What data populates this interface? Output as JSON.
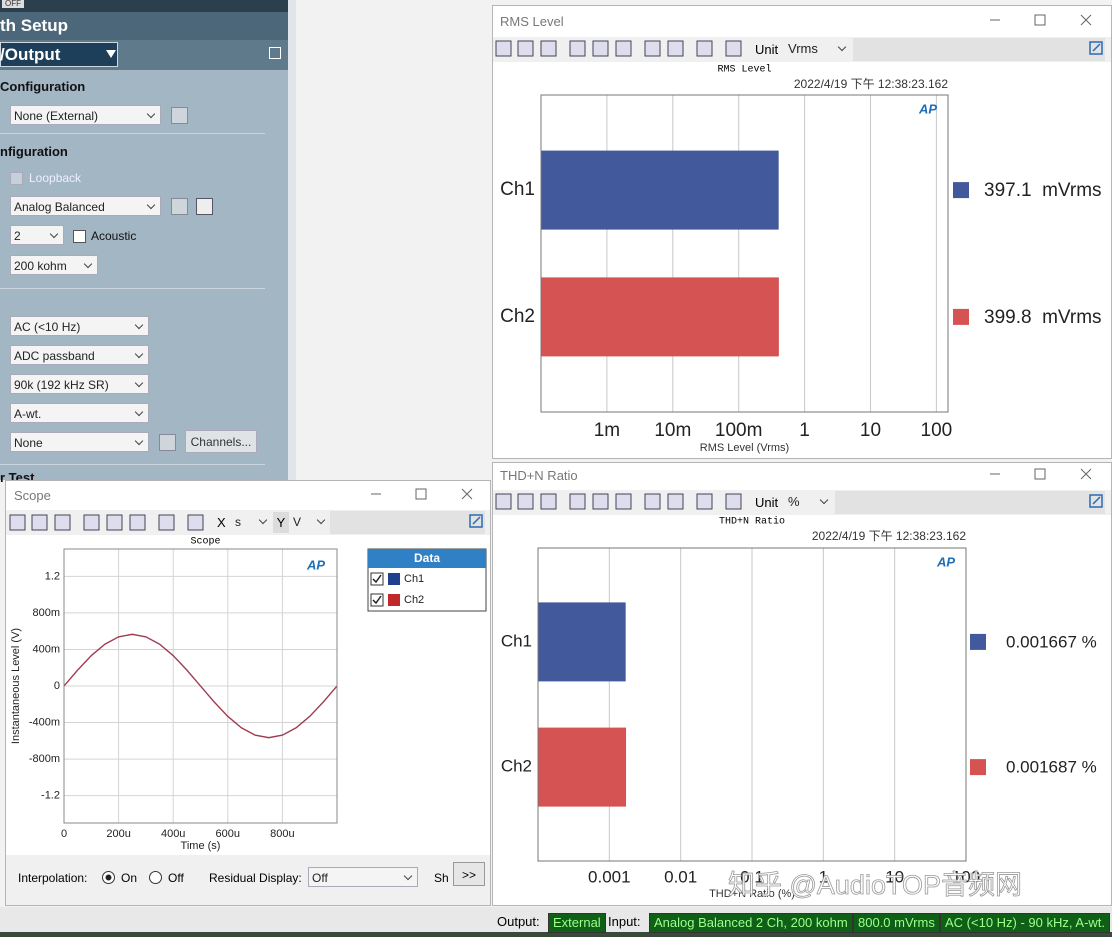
{
  "ui": {
    "top_badge": "OFF",
    "logo": "AP",
    "left_panel": {
      "title": "th Setup",
      "selector": "/Output",
      "section1": "Configuration",
      "output_select": "None (External)",
      "section2": "nfiguration",
      "loopback": "Loopback",
      "input_select": "Analog Balanced",
      "channel_count": "2",
      "acoustic": "Acoustic",
      "impedance": "200 kohm",
      "coupling": "AC (<10 Hz)",
      "bandwidth": "ADC passband",
      "filter": "90k (192 kHz SR)",
      "weighting": "A-wt.",
      "none_select": "None",
      "channels_button": "Channels...",
      "section3": "r Test"
    },
    "rms_window": {
      "title": "RMS Level",
      "unit_label": "Unit",
      "unit": "Vrms"
    },
    "thd_window": {
      "title": "THD+N Ratio",
      "unit_label": "Unit",
      "unit": "%"
    },
    "scope_window": {
      "title": "Scope",
      "x_axis": "X",
      "x_unit": "s",
      "y_axis": "Y",
      "y_unit": "V",
      "interpolation": "Interpolation:",
      "on": "On",
      "off": "Off",
      "residual": "Residual Display:",
      "residual_value": "Off",
      "show": "Sh",
      "more": ">>"
    },
    "status": {
      "output_label": "Output:",
      "output": "External",
      "input_label": "Input:",
      "input": "Analog Balanced 2 Ch, 200 kohm",
      "level": "800.0 mVrms",
      "filter": "AC (<10 Hz) - 90 kHz, A-wt."
    },
    "watermark": "知乎 @AudioTOP音频网"
  },
  "chart_data": [
    {
      "type": "bar",
      "orientation": "horizontal",
      "title": "RMS Level",
      "timestamp": "2022/4/19 下午 12:38:23.162",
      "x_label": "RMS Level (Vrms)",
      "categories": [
        "Ch1",
        "Ch2"
      ],
      "values": [
        0.3971,
        0.3998
      ],
      "value_labels": [
        "397.1  mVrms",
        "399.8  mVrms"
      ],
      "colors": [
        "#42599b",
        "#d55352"
      ],
      "xscale": "log",
      "xlim": [
        0.0001,
        150
      ],
      "xticks": [
        {
          "value": 0.001,
          "label": "1m"
        },
        {
          "value": 0.01,
          "label": "10m"
        },
        {
          "value": 0.1,
          "label": "100m"
        },
        1,
        10,
        100
      ],
      "grid": true
    },
    {
      "type": "bar",
      "orientation": "horizontal",
      "title": "THD+N Ratio",
      "timestamp": "2022/4/19 下午 12:38:23.162",
      "x_label": "THD+N Ratio (%)",
      "categories": [
        "Ch1",
        "Ch2"
      ],
      "values": [
        0.001667,
        0.001687
      ],
      "value_labels": [
        "0.001667 %",
        "0.001687 %"
      ],
      "colors": [
        "#42599b",
        "#d55352"
      ],
      "xscale": "log",
      "xlim": [
        0.0001,
        100
      ],
      "xticks": [
        0.001,
        0.01,
        0.1,
        1,
        10,
        100
      ],
      "grid": true
    },
    {
      "type": "line",
      "title": "Scope",
      "x_label": "Time (s)",
      "y_label": "Instantaneous Level (V)",
      "x": [
        0,
        5e-05,
        0.0001,
        0.00015,
        0.0002,
        0.00025,
        0.0003,
        0.00035,
        0.0004,
        0.00045,
        0.0005,
        0.00055,
        0.0006,
        0.00065,
        0.0007,
        0.00075,
        0.0008,
        0.00085,
        0.0009,
        0.00095,
        0.001
      ],
      "series": [
        {
          "name": "Ch1",
          "color": "#1f3f8f",
          "values": [
            0,
            0.175,
            0.333,
            0.458,
            0.538,
            0.566,
            0.538,
            0.458,
            0.333,
            0.175,
            0,
            -0.175,
            -0.333,
            -0.458,
            -0.538,
            -0.566,
            -0.538,
            -0.458,
            -0.333,
            -0.175,
            0
          ]
        },
        {
          "name": "Ch2",
          "color": "#c0282a",
          "values": [
            0,
            0.175,
            0.333,
            0.458,
            0.538,
            0.566,
            0.538,
            0.458,
            0.333,
            0.175,
            0,
            -0.175,
            -0.333,
            -0.458,
            -0.538,
            -0.566,
            -0.538,
            -0.458,
            -0.333,
            -0.175,
            0
          ]
        }
      ],
      "xlim": [
        0,
        0.001
      ],
      "xticks": [
        0,
        {
          "value": 0.0002,
          "label": "200u"
        },
        {
          "value": 0.0004,
          "label": "400u"
        },
        {
          "value": 0.0006,
          "label": "600u"
        },
        {
          "value": 0.0008,
          "label": "800u"
        }
      ],
      "ylim": [
        -1.5,
        1.5
      ],
      "yticks": [
        1.2,
        {
          "value": 0.8,
          "label": "800m"
        },
        {
          "value": 0.4,
          "label": "400m"
        },
        0,
        {
          "value": -0.4,
          "label": "-400m"
        },
        {
          "value": -0.8,
          "label": "-800m"
        },
        -1.2
      ],
      "grid": true,
      "legend_title": "Data",
      "legend": "upper right"
    }
  ]
}
